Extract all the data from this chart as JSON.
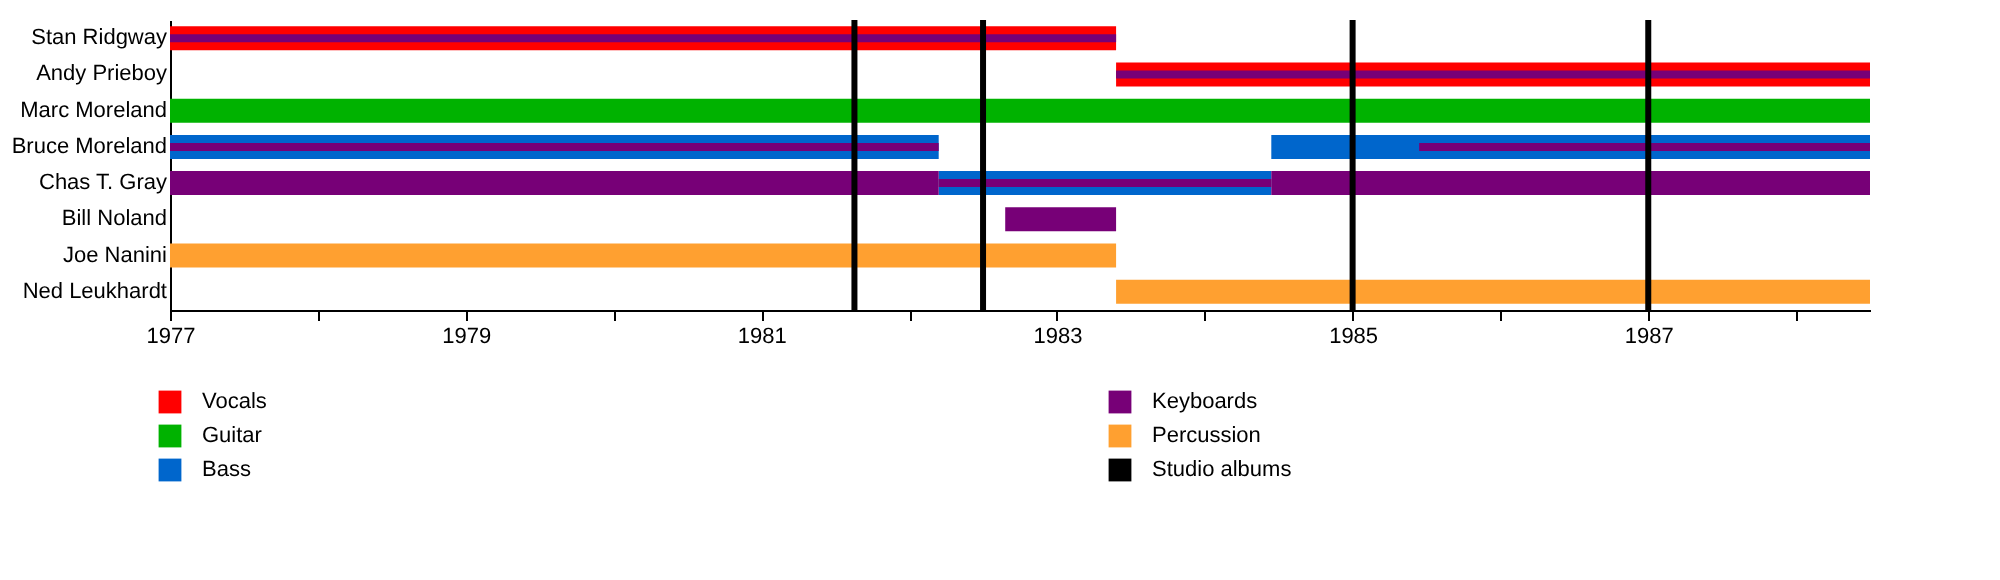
{
  "chart_data": {
    "type": "bar",
    "orientation": "horizontal",
    "categories": [
      "Stan Ridgway",
      "Andy Prieboy",
      "Marc Moreland",
      "Bruce Moreland",
      "Chas T. Gray",
      "Bill Noland",
      "Joe Nanini",
      "Ned Leukhardt"
    ],
    "series": [
      {
        "name": "Vocals",
        "color": "#ff0000",
        "base": [
          1977,
          1983.4,
          null,
          null,
          null,
          null,
          null,
          null
        ],
        "values": [
          6.4,
          5.1,
          null,
          null,
          null,
          null,
          null,
          null
        ]
      },
      {
        "name": "Guitar",
        "color": "#00b200",
        "base": [
          null,
          null,
          1977,
          null,
          null,
          null,
          null,
          null
        ],
        "values": [
          null,
          null,
          11.5,
          null,
          null,
          null,
          null,
          null
        ]
      },
      {
        "name": "Bass",
        "color": "#0066cc",
        "base": [
          null,
          null,
          null,
          1977,
          1982.2,
          null,
          null,
          null
        ],
        "values": [
          null,
          null,
          null,
          5.2,
          2.25,
          null,
          null,
          null
        ]
      },
      {
        "color": "#0066cc",
        "base": [
          null,
          null,
          null,
          1984.45,
          null,
          null,
          null,
          null
        ],
        "values": [
          null,
          null,
          null,
          4.05,
          null,
          null,
          null,
          null
        ]
      },
      {
        "name": "Keyboards",
        "color": "#770077",
        "base": [
          null,
          null,
          null,
          null,
          1977,
          1982.65,
          null,
          null
        ],
        "values": [
          null,
          null,
          null,
          null,
          5.2,
          0.75,
          null,
          null
        ]
      },
      {
        "color": "#770077",
        "base": [
          null,
          null,
          null,
          null,
          1984.45,
          null,
          null,
          null
        ],
        "values": [
          null,
          null,
          null,
          null,
          4.05,
          null,
          null,
          null
        ]
      },
      {
        "name": "Percussion",
        "color": "#ffa030",
        "base": [
          null,
          null,
          null,
          null,
          null,
          null,
          1977,
          1983.4
        ],
        "values": [
          null,
          null,
          null,
          null,
          null,
          null,
          6.4,
          5.1
        ]
      },
      {
        "color": "#770077",
        "base": [
          1977,
          1983.4,
          null,
          1977,
          1982.2,
          null,
          null,
          null
        ],
        "values": [
          6.4,
          5.1,
          null,
          5.2,
          2.25,
          null,
          null,
          null
        ]
      },
      {
        "color": "#770077",
        "base": [
          null,
          null,
          null,
          1985.45,
          null,
          null,
          null,
          null
        ],
        "values": [
          null,
          null,
          null,
          3.05,
          null,
          null,
          null,
          null
        ]
      }
    ],
    "ref_lines": [
      {
        "axis": "x",
        "value": 1981.63,
        "label": "Studio albums",
        "color": "#000000"
      },
      {
        "axis": "x",
        "value": 1982.5,
        "color": "#000000"
      },
      {
        "axis": "x",
        "value": 1985.0,
        "color": "#000000"
      },
      {
        "axis": "x",
        "value": 1987.0,
        "color": "#000000"
      }
    ],
    "xlim": [
      1977,
      1988.5
    ],
    "xticks": [
      1977,
      {
        "value": 1978,
        "label": null
      },
      1979,
      {
        "value": 1980,
        "label": null
      },
      1981,
      {
        "value": 1982,
        "label": null
      },
      1983,
      {
        "value": 1984,
        "label": null
      },
      1985,
      {
        "value": 1986,
        "label": null
      },
      1987,
      {
        "value": 1988,
        "label": null
      }
    ],
    "grid": false,
    "legend": "bottom left"
  }
}
